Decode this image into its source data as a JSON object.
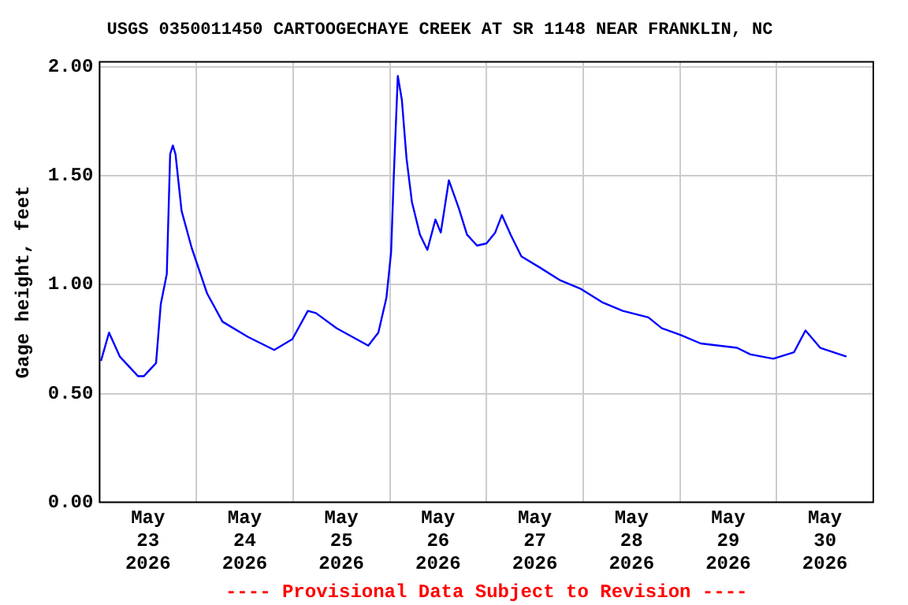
{
  "chart_data": {
    "type": "line",
    "title": "USGS 0350011450 CARTOOGECHAYE CREEK AT SR 1148 NEAR FRANKLIN, NC",
    "ylabel": "Gage height, feet",
    "annotations": [
      "---- Provisional Data Subject to Revision ----"
    ],
    "x": [
      "2026-05-23T00:20",
      "2026-05-23T02:20",
      "2026-05-23T05:00",
      "2026-05-23T09:30",
      "2026-05-23T11:00",
      "2026-05-23T14:00",
      "2026-05-23T15:10",
      "2026-05-23T16:40",
      "2026-05-23T17:30",
      "2026-05-23T18:10",
      "2026-05-23T18:50",
      "2026-05-23T20:20",
      "2026-05-23T22:50",
      "2026-05-24T02:40",
      "2026-05-24T06:30",
      "2026-05-24T12:50",
      "2026-05-24T19:20",
      "2026-05-24T23:50",
      "2026-05-25T03:40",
      "2026-05-25T05:40",
      "2026-05-25T10:50",
      "2026-05-25T18:40",
      "2026-05-25T21:10",
      "2026-05-25T23:10",
      "2026-05-26T00:20",
      "2026-05-26T01:00",
      "2026-05-26T02:00",
      "2026-05-26T03:00",
      "2026-05-26T04:10",
      "2026-05-26T05:30",
      "2026-05-26T07:30",
      "2026-05-26T09:20",
      "2026-05-26T11:20",
      "2026-05-26T12:40",
      "2026-05-26T14:40",
      "2026-05-26T17:10",
      "2026-05-26T19:10",
      "2026-05-26T21:40",
      "2026-05-27T00:00",
      "2026-05-27T02:10",
      "2026-05-27T03:50",
      "2026-05-27T06:00",
      "2026-05-27T08:40",
      "2026-05-27T13:10",
      "2026-05-27T18:20",
      "2026-05-27T23:30",
      "2026-05-28T04:40",
      "2026-05-28T09:50",
      "2026-05-28T16:10",
      "2026-05-28T19:30",
      "2026-05-29T00:00",
      "2026-05-29T05:10",
      "2026-05-29T14:10",
      "2026-05-29T17:30",
      "2026-05-29T23:10",
      "2026-05-30T04:20",
      "2026-05-30T07:10",
      "2026-05-30T10:50",
      "2026-05-30T17:20"
    ],
    "series": [
      {
        "color": "#0000ff",
        "values": [
          0.65,
          0.78,
          0.67,
          0.58,
          0.58,
          0.64,
          0.91,
          1.05,
          1.6,
          1.64,
          1.6,
          1.34,
          1.17,
          0.96,
          0.83,
          0.76,
          0.7,
          0.75,
          0.88,
          0.87,
          0.8,
          0.72,
          0.78,
          0.94,
          1.15,
          1.5,
          1.96,
          1.85,
          1.58,
          1.38,
          1.23,
          1.16,
          1.3,
          1.24,
          1.48,
          1.35,
          1.23,
          1.18,
          1.19,
          1.24,
          1.32,
          1.23,
          1.13,
          1.08,
          1.02,
          0.98,
          0.92,
          0.88,
          0.85,
          0.8,
          0.77,
          0.73,
          0.71,
          0.68,
          0.66,
          0.69,
          0.79,
          0.71,
          0.67
        ]
      }
    ],
    "xlim": [
      "2026-05-23T00:00",
      "2026-05-31T00:00"
    ],
    "xticks": [
      {
        "value": "2026-05-23T00:00",
        "label": null
      },
      {
        "value": "2026-05-23T12:00",
        "label": "May 23 2026"
      },
      {
        "value": "2026-05-24T00:00",
        "label": null
      },
      {
        "value": "2026-05-24T12:00",
        "label": "May 24 2026"
      },
      {
        "value": "2026-05-25T00:00",
        "label": null
      },
      {
        "value": "2026-05-25T12:00",
        "label": "May 25 2026"
      },
      {
        "value": "2026-05-26T00:00",
        "label": null
      },
      {
        "value": "2026-05-26T12:00",
        "label": "May 26 2026"
      },
      {
        "value": "2026-05-27T00:00",
        "label": null
      },
      {
        "value": "2026-05-27T12:00",
        "label": "May 27 2026"
      },
      {
        "value": "2026-05-28T00:00",
        "label": null
      },
      {
        "value": "2026-05-28T12:00",
        "label": "May 28 2026"
      },
      {
        "value": "2026-05-29T00:00",
        "label": null
      },
      {
        "value": "2026-05-29T12:00",
        "label": "May 29 2026"
      },
      {
        "value": "2026-05-30T00:00",
        "label": null
      },
      {
        "value": "2026-05-30T12:00",
        "label": "May 30 2026"
      },
      {
        "value": "2026-05-31T00:00",
        "label": null
      }
    ],
    "ylim": [
      0,
      2.025
    ],
    "yticks": [
      {
        "value": 0,
        "label": "0.00"
      },
      {
        "value": 0.5,
        "label": "0.50"
      },
      {
        "value": 1,
        "label": "1.00"
      },
      {
        "value": 1.5,
        "label": "1.50"
      },
      {
        "value": 2,
        "label": "2.00"
      }
    ],
    "grid": true
  }
}
